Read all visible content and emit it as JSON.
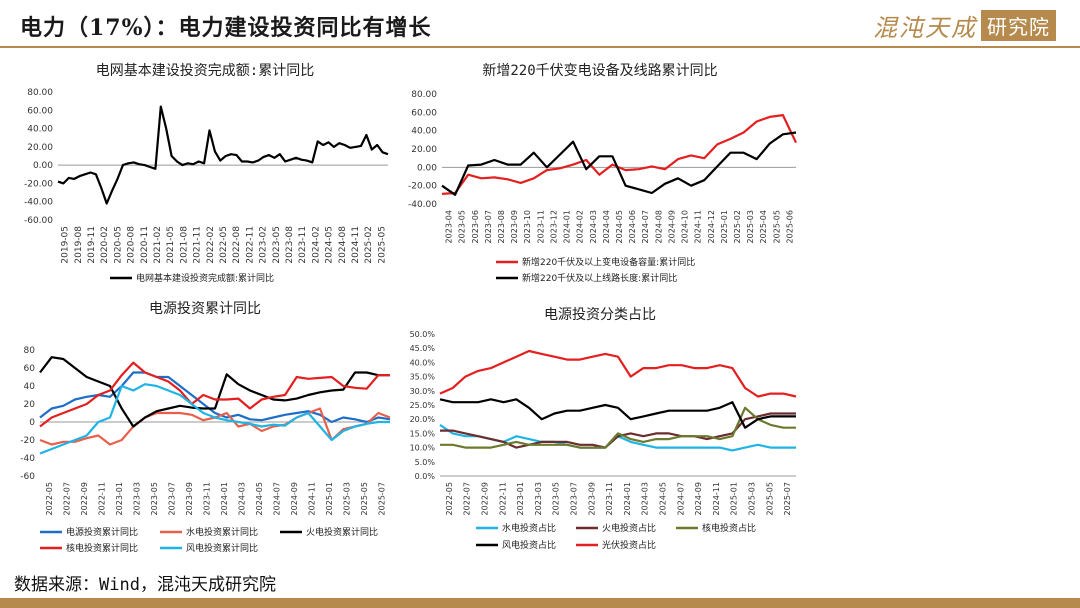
{
  "header": {
    "title": "电力（17%）：电力建设投资同比有增长",
    "logo_text": "混沌天成",
    "logo_box_text": "研究院"
  },
  "footer": {
    "source": "数据来源：Wind，混沌天成研究院"
  },
  "colors": {
    "accent": "#b58a4c",
    "black": "#000000",
    "red": "#e41f1f",
    "blue": "#1e9ee6",
    "orange_red": "#e8604c",
    "salmon": "#c86060",
    "dark_brown": "#6b2d2d",
    "olive": "#6b7a2e"
  },
  "chart_data": [
    {
      "type": "line",
      "title": "电网基本建设投资完成额:累计同比",
      "ylim": [
        -60,
        80
      ],
      "yticks": [
        "80.00",
        "60.00",
        "40.00",
        "20.00",
        "0.00",
        "-20.00",
        "-40.00",
        "-60.00"
      ],
      "xticks": [
        "2019-05",
        "2019-08",
        "2019-11",
        "2020-02",
        "2020-05",
        "2020-08",
        "2020-11",
        "2021-02",
        "2021-05",
        "2021-08",
        "2021-11",
        "2022-02",
        "2022-05",
        "2022-08",
        "2022-11",
        "2023-02",
        "2023-05",
        "2023-08",
        "2023-11",
        "2024-02",
        "2024-05",
        "2024-08",
        "2024-11",
        "2025-02",
        "2025-05"
      ],
      "series": [
        {
          "name": "电网基本建设投资完成额:累计同比",
          "color": "#000000",
          "values": [
            -18,
            -20,
            -14,
            -15,
            -12,
            -10,
            -8,
            -10,
            -25,
            -42,
            -28,
            -15,
            0,
            2,
            3,
            1,
            0,
            -2,
            -4,
            64,
            40,
            10,
            4,
            0,
            2,
            1,
            4,
            2,
            38,
            15,
            5,
            10,
            12,
            11,
            4,
            4,
            3,
            5,
            9,
            11,
            8,
            12,
            4,
            6,
            8,
            6,
            5,
            3,
            26,
            22,
            25,
            20,
            24,
            22,
            19,
            20,
            21,
            33,
            17,
            22,
            14,
            12
          ]
        }
      ]
    },
    {
      "type": "line",
      "title": "新增220千伏变电设备及线路累计同比",
      "ylim": [
        -40,
        80
      ],
      "yticks": [
        "80.00",
        "60.00",
        "40.00",
        "20.00",
        "0.00",
        "-20.00",
        "-40.00"
      ],
      "xticks": [
        "2023-04",
        "2023-05",
        "2023-06",
        "2023-07",
        "2023-08",
        "2023-09",
        "2023-10",
        "2023-11",
        "2023-12",
        "2024-01",
        "2024-02",
        "2024-03",
        "2024-04",
        "2024-05",
        "2024-06",
        "2024-07",
        "2024-08",
        "2024-09",
        "2024-10",
        "2024-11",
        "2024-12",
        "2025-01",
        "2025-02",
        "2025-03",
        "2025-04",
        "2025-05",
        "2025-06"
      ],
      "series": [
        {
          "name": "新增220千伏及以上变电设备容量:累计同比",
          "color": "#e41f1f",
          "values": [
            -29,
            -28,
            -8,
            -12,
            -11,
            -13,
            -17,
            -12,
            -3,
            -1,
            3,
            8,
            -8,
            3,
            -3,
            -2,
            1,
            -2,
            9,
            13,
            10,
            25,
            31,
            38,
            50,
            55,
            57,
            27
          ]
        },
        {
          "name": "新增220千伏及以上线路长度:累计同比",
          "color": "#000000",
          "values": [
            -20,
            -30,
            2,
            3,
            8,
            3,
            3,
            16,
            0,
            14,
            28,
            -2,
            12,
            12,
            -20,
            -24,
            -28,
            -18,
            -12,
            -20,
            -14,
            1,
            16,
            16,
            9,
            26,
            36,
            38
          ]
        }
      ]
    },
    {
      "type": "line",
      "title": "电源投资累计同比",
      "ylim": [
        -60,
        80
      ],
      "yticks": [
        "80",
        "60",
        "40",
        "20",
        "0",
        "-20",
        "-40",
        "-60"
      ],
      "xticks": [
        "2022-05",
        "2022-07",
        "2022-09",
        "2022-11",
        "2023-01",
        "2023-03",
        "2023-05",
        "2023-07",
        "2023-09",
        "2023-11",
        "2024-01",
        "2024-03",
        "2024-05",
        "2024-07",
        "2024-09",
        "2024-11",
        "2025-01",
        "2025-03",
        "2025-05",
        "2025-07"
      ],
      "series": [
        {
          "name": "电源投资累计同比",
          "color": "#1e6ec8",
          "values": [
            5,
            15,
            18,
            25,
            28,
            30,
            28,
            40,
            55,
            55,
            50,
            50,
            40,
            30,
            20,
            10,
            5,
            8,
            3,
            2,
            5,
            8,
            10,
            12,
            8,
            0,
            5,
            3,
            0,
            5,
            3
          ]
        },
        {
          "name": "水电投资累计同比",
          "color": "#e8604c",
          "values": [
            -20,
            -25,
            -22,
            -22,
            -18,
            -15,
            -25,
            -20,
            -5,
            5,
            10,
            10,
            10,
            8,
            2,
            5,
            10,
            -5,
            -2,
            -10,
            -5,
            -3,
            5,
            10,
            15,
            -20,
            -8,
            -5,
            -2,
            10,
            5
          ]
        },
        {
          "name": "火电投资累计同比",
          "color": "#000000",
          "values": [
            55,
            72,
            70,
            60,
            50,
            45,
            40,
            15,
            -5,
            5,
            12,
            15,
            18,
            16,
            15,
            15,
            53,
            42,
            35,
            30,
            25,
            24,
            26,
            30,
            33,
            35,
            36,
            55,
            55,
            52,
            52
          ]
        },
        {
          "name": "核电投资累计同比",
          "color": "#e41f1f",
          "values": [
            -5,
            5,
            10,
            15,
            20,
            30,
            35,
            52,
            66,
            55,
            50,
            45,
            35,
            20,
            30,
            25,
            25,
            26,
            15,
            25,
            28,
            30,
            50,
            48,
            49,
            50,
            40,
            38,
            37,
            52,
            52
          ]
        },
        {
          "name": "风电投资累计同比",
          "color": "#1eb4e6",
          "values": [
            -35,
            -30,
            -25,
            -20,
            -15,
            0,
            5,
            40,
            35,
            42,
            40,
            35,
            30,
            20,
            10,
            5,
            2,
            0,
            -2,
            -5,
            -3,
            -4,
            5,
            10,
            -5,
            -20,
            -10,
            -5,
            -2,
            0,
            0
          ]
        }
      ]
    },
    {
      "type": "line",
      "title": "电源投资分类占比",
      "ylim": [
        0,
        50
      ],
      "yticks": [
        "50.0%",
        "45.0%",
        "40.0%",
        "35.0%",
        "30.0%",
        "25.0%",
        "20.0%",
        "15.0%",
        "10.0%",
        "5.0%",
        "0.0%"
      ],
      "xticks": [
        "2022-05",
        "2022-07",
        "2022-09",
        "2022-11",
        "2023-01",
        "2023-03",
        "2023-05",
        "2023-07",
        "2023-09",
        "2023-11",
        "2024-01",
        "2024-03",
        "2024-05",
        "2024-07",
        "2024-09",
        "2024-11",
        "2025-01",
        "2025-03",
        "2025-05",
        "2025-07"
      ],
      "series": [
        {
          "name": "水电投资占比",
          "color": "#1eb4e6",
          "values": [
            18,
            15,
            14,
            14,
            13,
            12,
            14,
            13,
            12,
            12,
            11,
            10,
            10,
            10,
            14,
            12,
            11,
            10,
            10,
            10,
            10,
            10,
            10,
            9,
            10,
            11,
            10,
            10,
            10
          ]
        },
        {
          "name": "火电投资占比",
          "color": "#6b2d2d",
          "values": [
            16,
            16,
            15,
            14,
            13,
            12,
            10,
            11,
            12,
            12,
            12,
            11,
            11,
            10,
            14,
            15,
            14,
            15,
            15,
            14,
            14,
            13,
            14,
            15,
            20,
            21,
            22,
            22,
            22
          ]
        },
        {
          "name": "核电投资占比",
          "color": "#6b7a2e",
          "values": [
            11,
            11,
            10,
            10,
            10,
            11,
            12,
            11,
            11,
            11,
            11,
            10,
            10,
            10,
            15,
            13,
            12,
            13,
            13,
            14,
            14,
            14,
            13,
            14,
            24,
            20,
            18,
            17,
            17
          ]
        },
        {
          "name": "风电投资占比",
          "color": "#000000",
          "values": [
            27,
            26,
            26,
            26,
            27,
            26,
            27,
            24,
            20,
            22,
            23,
            23,
            24,
            25,
            24,
            20,
            21,
            22,
            23,
            23,
            23,
            23,
            24,
            26,
            17,
            20,
            21,
            21,
            21
          ]
        },
        {
          "name": "光伏投资占比",
          "color": "#e41f1f",
          "values": [
            29,
            31,
            35,
            37,
            38,
            40,
            42,
            44,
            43,
            42,
            41,
            41,
            42,
            43,
            42,
            35,
            38,
            38,
            39,
            39,
            38,
            38,
            39,
            38,
            31,
            28,
            29,
            29,
            28
          ]
        }
      ]
    }
  ]
}
